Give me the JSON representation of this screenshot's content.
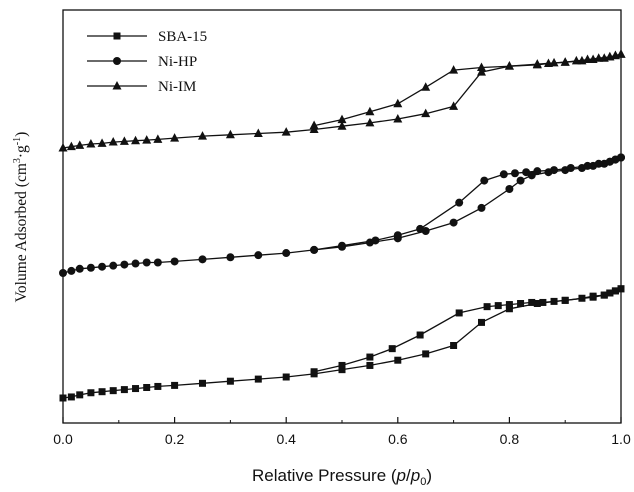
{
  "chart_data": {
    "type": "line",
    "xlabel": "Relative Pressure (p/p0)",
    "xlabel_parts": [
      "Relative Pressure (",
      "p",
      "/",
      "p",
      "0",
      ")"
    ],
    "ylabel": "Volume Adsorbed (cm3·g-1)",
    "ylabel_parts": [
      "Volume Adsorbed (cm",
      "3",
      "·g",
      "-1",
      ")"
    ],
    "xlim": [
      0,
      1.0
    ],
    "x_ticks": [
      "0.0",
      "0.2",
      "0.4",
      "0.6",
      "0.8",
      "1.0"
    ],
    "y_tick_labels": false,
    "legend_position": "top-left",
    "grid": false,
    "series": [
      {
        "name": "SBA-15",
        "marker": "square",
        "color": "#111111",
        "adsorption": {
          "x": [
            0.0,
            0.015,
            0.03,
            0.05,
            0.07,
            0.09,
            0.11,
            0.13,
            0.15,
            0.17,
            0.2,
            0.25,
            0.3,
            0.35,
            0.4,
            0.45,
            0.5,
            0.55,
            0.6,
            0.65,
            0.7,
            0.75,
            0.8,
            0.85,
            0.9,
            0.95,
            0.97,
            0.98,
            0.99,
            1.0
          ],
          "y": [
            0.0,
            0.01,
            0.03,
            0.05,
            0.06,
            0.07,
            0.08,
            0.09,
            0.1,
            0.11,
            0.12,
            0.14,
            0.16,
            0.18,
            0.2,
            0.23,
            0.27,
            0.31,
            0.36,
            0.42,
            0.5,
            0.72,
            0.85,
            0.9,
            0.93,
            0.96,
            0.98,
            1.0,
            1.02,
            1.04
          ]
        },
        "desorption": {
          "x": [
            1.0,
            0.99,
            0.98,
            0.97,
            0.95,
            0.93,
            0.9,
            0.88,
            0.86,
            0.84,
            0.82,
            0.8,
            0.78,
            0.76,
            0.71,
            0.64,
            0.59,
            0.55,
            0.5,
            0.45
          ],
          "y": [
            1.04,
            1.02,
            1.0,
            0.98,
            0.97,
            0.95,
            0.93,
            0.92,
            0.91,
            0.91,
            0.9,
            0.89,
            0.88,
            0.87,
            0.81,
            0.6,
            0.47,
            0.39,
            0.31,
            0.25
          ]
        }
      },
      {
        "name": "Ni-HP",
        "marker": "circle",
        "color": "#111111",
        "adsorption": {
          "x": [
            0.0,
            0.015,
            0.03,
            0.05,
            0.07,
            0.09,
            0.11,
            0.13,
            0.15,
            0.17,
            0.2,
            0.25,
            0.3,
            0.35,
            0.4,
            0.45,
            0.5,
            0.55,
            0.6,
            0.65,
            0.7,
            0.75,
            0.8,
            0.82,
            0.84,
            0.87,
            0.9,
            0.93,
            0.95,
            0.97,
            0.98,
            0.99,
            1.0
          ],
          "y": [
            0.0,
            0.02,
            0.04,
            0.05,
            0.06,
            0.07,
            0.08,
            0.09,
            0.1,
            0.1,
            0.11,
            0.13,
            0.15,
            0.17,
            0.19,
            0.22,
            0.25,
            0.29,
            0.33,
            0.4,
            0.48,
            0.62,
            0.8,
            0.88,
            0.93,
            0.96,
            0.98,
            1.0,
            1.02,
            1.04,
            1.06,
            1.08,
            1.1
          ]
        },
        "desorption": {
          "x": [
            1.0,
            0.99,
            0.98,
            0.96,
            0.94,
            0.91,
            0.88,
            0.85,
            0.83,
            0.81,
            0.79,
            0.755,
            0.71,
            0.64,
            0.6,
            0.56,
            0.5,
            0.45
          ],
          "y": [
            1.1,
            1.08,
            1.06,
            1.04,
            1.02,
            1.0,
            0.98,
            0.97,
            0.96,
            0.95,
            0.94,
            0.88,
            0.67,
            0.42,
            0.36,
            0.31,
            0.26,
            0.22
          ]
        }
      },
      {
        "name": "Ni-IM",
        "marker": "triangle",
        "color": "#111111",
        "adsorption": {
          "x": [
            0.0,
            0.015,
            0.03,
            0.05,
            0.07,
            0.09,
            0.11,
            0.13,
            0.15,
            0.17,
            0.2,
            0.25,
            0.3,
            0.35,
            0.4,
            0.45,
            0.5,
            0.55,
            0.6,
            0.65,
            0.7,
            0.75,
            0.8,
            0.85,
            0.88,
            0.9,
            0.93,
            0.95,
            0.97,
            0.98,
            0.99,
            1.0
          ],
          "y": [
            0.0,
            0.02,
            0.04,
            0.06,
            0.07,
            0.09,
            0.1,
            0.11,
            0.12,
            0.13,
            0.15,
            0.18,
            0.2,
            0.22,
            0.24,
            0.28,
            0.33,
            0.38,
            0.44,
            0.52,
            0.63,
            1.15,
            1.24,
            1.27,
            1.29,
            1.3,
            1.32,
            1.34,
            1.36,
            1.38,
            1.4,
            1.42
          ]
        },
        "desorption": {
          "x": [
            1.0,
            0.99,
            0.98,
            0.96,
            0.94,
            0.92,
            0.9,
            0.87,
            0.85,
            0.8,
            0.75,
            0.7,
            0.65,
            0.6,
            0.55,
            0.5,
            0.45
          ],
          "y": [
            1.42,
            1.4,
            1.38,
            1.36,
            1.34,
            1.32,
            1.3,
            1.28,
            1.26,
            1.24,
            1.22,
            1.18,
            0.92,
            0.67,
            0.55,
            0.43,
            0.34
          ]
        }
      }
    ]
  }
}
